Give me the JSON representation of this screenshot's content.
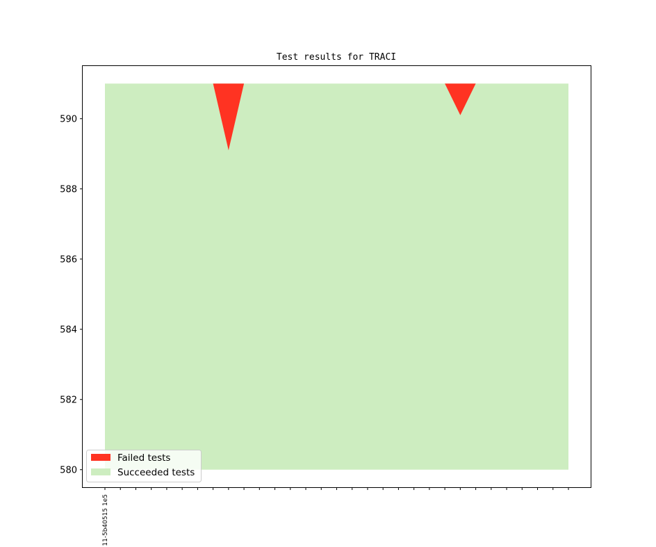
{
  "chart_data": {
    "type": "area",
    "title": "Test results for TRACI",
    "xlabel": "",
    "ylabel": "",
    "ylim": [
      579.5,
      591.5
    ],
    "yticks": [
      580,
      582,
      584,
      586,
      588,
      590
    ],
    "x_count": 31,
    "x_tick_labels": [
      {
        "index": 0,
        "label": "11-5b40515 1e5"
      }
    ],
    "series": [
      {
        "name": "Succeeded tests",
        "color": "#cdedc0",
        "baseline": 580,
        "values": [
          591,
          591,
          591,
          591,
          591,
          591,
          591,
          591,
          591,
          591,
          591,
          591,
          591,
          591,
          591,
          591,
          591,
          591,
          591,
          591,
          591,
          591,
          591,
          591,
          591,
          591,
          591,
          591,
          591,
          591,
          591
        ]
      },
      {
        "name": "Failed tests",
        "color": "#ff3322",
        "top": 591,
        "values": [
          591,
          591,
          591,
          591,
          591,
          591,
          591,
          591,
          589.1,
          591,
          591,
          591,
          591,
          591,
          591,
          591,
          591,
          591,
          591,
          591,
          591,
          591,
          591,
          590.1,
          591,
          591,
          591,
          591,
          591,
          591,
          591
        ]
      }
    ],
    "legend_position": "lower-left",
    "legend_entries": [
      "Failed tests",
      "Succeeded tests"
    ],
    "grid": false
  }
}
